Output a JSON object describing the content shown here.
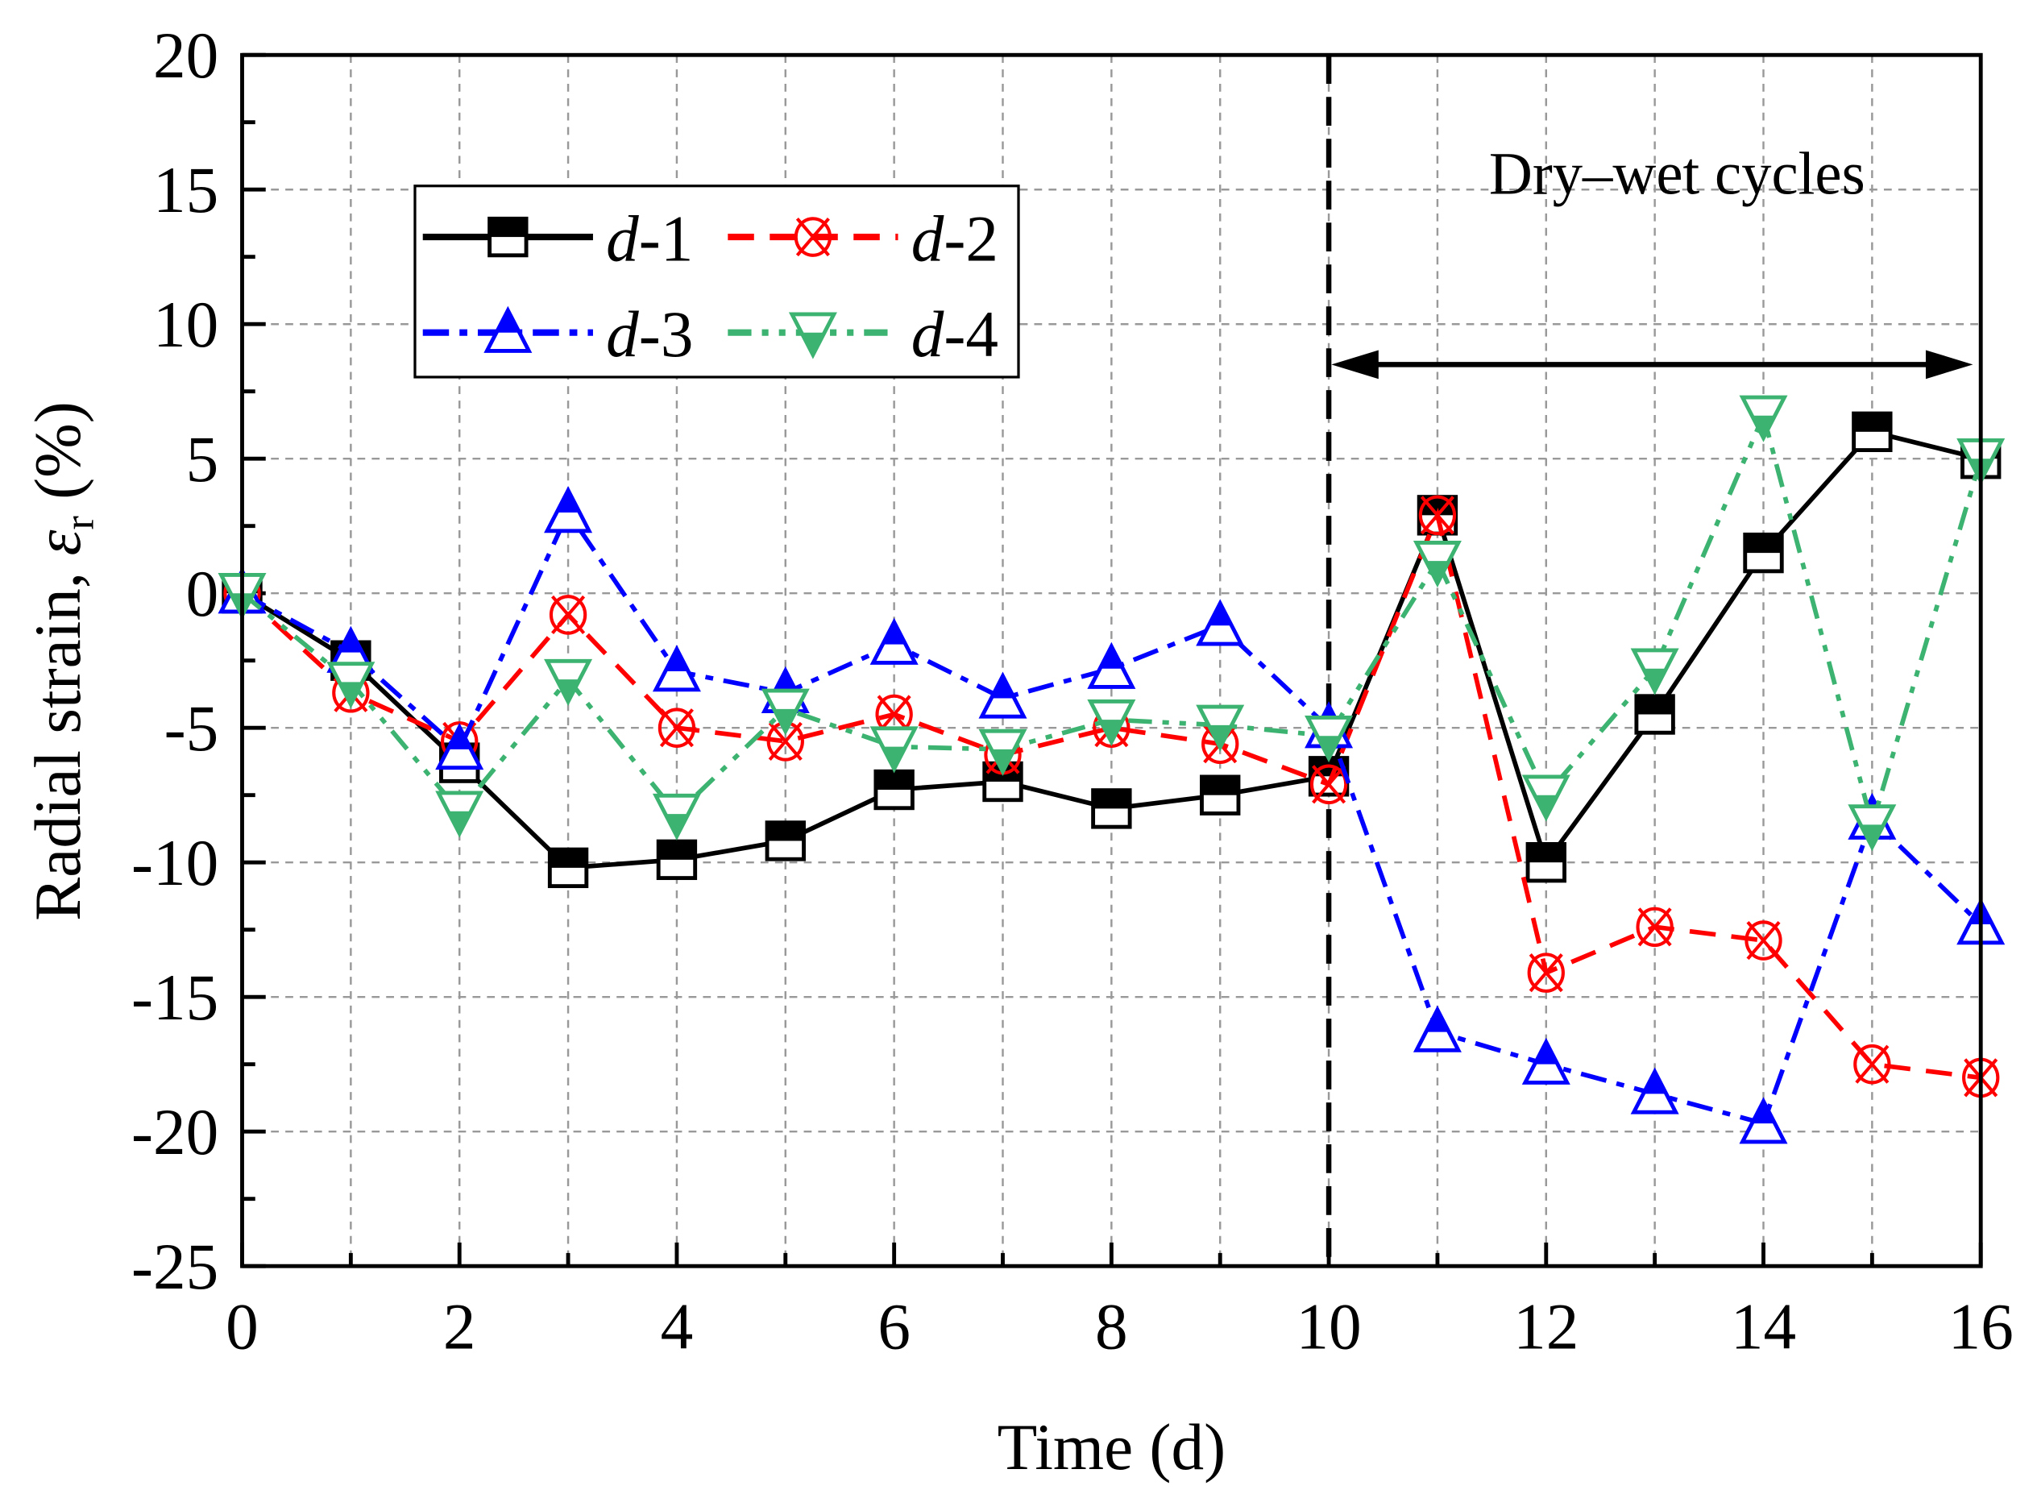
{
  "chart_data": {
    "type": "line",
    "title": "",
    "xlabel": "Time (d)",
    "ylabel_prefix": "Radial strain, ",
    "ylabel_symbol": "ε",
    "ylabel_sub": "r",
    "ylabel_suffix": " (%)",
    "xlim": [
      0,
      16
    ],
    "ylim": [
      -25,
      20
    ],
    "xticks": [
      "0",
      "2",
      "4",
      "6",
      "8",
      "10",
      "12",
      "14",
      "16"
    ],
    "yticks": [
      "20",
      "15",
      "10",
      "5",
      "0",
      "-5",
      "-10",
      "-15",
      "-20",
      "-25"
    ],
    "grid": true,
    "legend_position": "top-left",
    "x": [
      0,
      1,
      2,
      3,
      4,
      5,
      6,
      7,
      8,
      9,
      10,
      11,
      12,
      13,
      14,
      15,
      16
    ],
    "series": [
      {
        "name": "d-1",
        "prefix": "d",
        "suffix": "-1",
        "color": "#000000",
        "marker": "square",
        "dash": "",
        "values": [
          0,
          -2.5,
          -6.3,
          -10.2,
          -9.9,
          -9.2,
          -7.3,
          -7.0,
          -8.0,
          -7.5,
          -6.8,
          2.9,
          -10.0,
          -4.5,
          1.5,
          6.0,
          5.0
        ]
      },
      {
        "name": "d-2",
        "prefix": "d",
        "suffix": "-2",
        "color": "#ff0000",
        "marker": "circle-x",
        "dash": "20,12",
        "values": [
          0,
          -3.7,
          -5.5,
          -0.8,
          -5.0,
          -5.5,
          -4.5,
          -6.0,
          -5.0,
          -5.6,
          -7.1,
          2.9,
          -14.1,
          -12.4,
          -12.9,
          -17.5,
          -18.0
        ]
      },
      {
        "name": "d-3",
        "prefix": "d",
        "suffix": "-3",
        "color": "#0000ff",
        "marker": "triangle-up",
        "dash": "20,8,6,8",
        "values": [
          0,
          -2.2,
          -5.8,
          3.0,
          -2.9,
          -3.7,
          -1.9,
          -3.9,
          -2.8,
          -1.2,
          -5.0,
          -16.3,
          -17.5,
          -18.6,
          -19.7,
          -8.4,
          -12.3
        ]
      },
      {
        "name": "d-4",
        "prefix": "d",
        "suffix": "-4",
        "color": "#3cb371",
        "marker": "triangle-down",
        "dash": "18,8,5,8,5,8",
        "values": [
          0,
          -3.3,
          -8.1,
          -3.2,
          -8.2,
          -4.3,
          -5.7,
          -5.8,
          -4.7,
          -4.9,
          -5.3,
          1.2,
          -7.5,
          -2.8,
          6.6,
          -8.6,
          5.0
        ]
      }
    ],
    "annotations": {
      "divider_x": 10,
      "region_label": "Dry–wet cycles",
      "arrow_range": [
        10,
        16
      ],
      "arrow_y": 8.5
    }
  }
}
